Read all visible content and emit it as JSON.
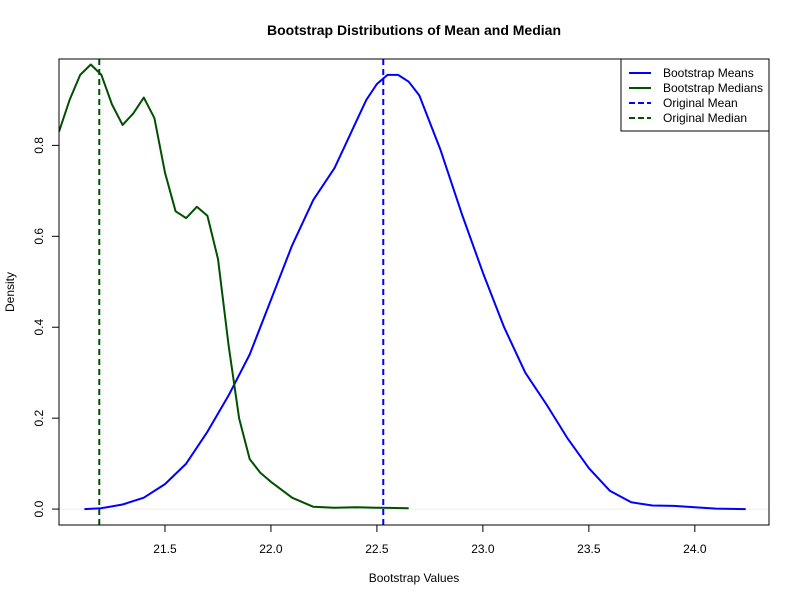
{
  "chart_data": {
    "type": "line",
    "title": "Bootstrap Distributions of Mean and Median",
    "xlabel": "Bootstrap Values",
    "ylabel": "Density",
    "xlim": [
      21.0,
      24.35
    ],
    "ylim": [
      -0.035,
      0.99
    ],
    "x_ticks": [
      {
        "value": 21.5,
        "label": "21.5"
      },
      {
        "value": 22.0,
        "label": "22.0"
      },
      {
        "value": 22.5,
        "label": "22.5"
      },
      {
        "value": 23.0,
        "label": "23.0"
      },
      {
        "value": 23.5,
        "label": "23.5"
      },
      {
        "value": 24.0,
        "label": "24.0"
      }
    ],
    "y_ticks": [
      {
        "value": 0.0,
        "label": "0.0"
      },
      {
        "value": 0.2,
        "label": "0.2"
      },
      {
        "value": 0.4,
        "label": "0.4"
      },
      {
        "value": 0.6,
        "label": "0.6"
      },
      {
        "value": 0.8,
        "label": "0.8"
      }
    ],
    "baseline": 0,
    "series": [
      {
        "name": "Bootstrap Means",
        "color": "#0000ff",
        "style": "solid",
        "points": [
          [
            21.12,
            0.0
          ],
          [
            21.2,
            0.002
          ],
          [
            21.3,
            0.01
          ],
          [
            21.4,
            0.025
          ],
          [
            21.5,
            0.055
          ],
          [
            21.6,
            0.1
          ],
          [
            21.7,
            0.17
          ],
          [
            21.8,
            0.25
          ],
          [
            21.9,
            0.34
          ],
          [
            22.0,
            0.46
          ],
          [
            22.1,
            0.58
          ],
          [
            22.2,
            0.68
          ],
          [
            22.3,
            0.75
          ],
          [
            22.35,
            0.8
          ],
          [
            22.4,
            0.85
          ],
          [
            22.45,
            0.9
          ],
          [
            22.5,
            0.935
          ],
          [
            22.55,
            0.955
          ],
          [
            22.6,
            0.955
          ],
          [
            22.65,
            0.94
          ],
          [
            22.7,
            0.91
          ],
          [
            22.8,
            0.79
          ],
          [
            22.9,
            0.65
          ],
          [
            23.0,
            0.52
          ],
          [
            23.1,
            0.4
          ],
          [
            23.2,
            0.3
          ],
          [
            23.3,
            0.23
          ],
          [
            23.4,
            0.155
          ],
          [
            23.5,
            0.09
          ],
          [
            23.6,
            0.04
          ],
          [
            23.7,
            0.015
          ],
          [
            23.8,
            0.008
          ],
          [
            23.9,
            0.007
          ],
          [
            24.0,
            0.004
          ],
          [
            24.1,
            0.001
          ],
          [
            24.24,
            0.0
          ]
        ]
      },
      {
        "name": "Bootstrap Medians",
        "color": "#005000",
        "style": "solid",
        "points": [
          [
            21.0,
            0.83
          ],
          [
            21.05,
            0.9
          ],
          [
            21.1,
            0.955
          ],
          [
            21.15,
            0.978
          ],
          [
            21.2,
            0.955
          ],
          [
            21.25,
            0.89
          ],
          [
            21.3,
            0.845
          ],
          [
            21.35,
            0.87
          ],
          [
            21.4,
            0.905
          ],
          [
            21.45,
            0.86
          ],
          [
            21.5,
            0.74
          ],
          [
            21.55,
            0.655
          ],
          [
            21.6,
            0.64
          ],
          [
            21.65,
            0.665
          ],
          [
            21.7,
            0.645
          ],
          [
            21.75,
            0.55
          ],
          [
            21.8,
            0.36
          ],
          [
            21.85,
            0.2
          ],
          [
            21.9,
            0.11
          ],
          [
            21.95,
            0.08
          ],
          [
            22.0,
            0.06
          ],
          [
            22.1,
            0.025
          ],
          [
            22.2,
            0.005
          ],
          [
            22.3,
            0.003
          ],
          [
            22.4,
            0.004
          ],
          [
            22.5,
            0.003
          ],
          [
            22.65,
            0.002
          ]
        ]
      },
      {
        "name": "Original Mean",
        "color": "#0000ff",
        "style": "dashed",
        "vline": 22.53
      },
      {
        "name": "Original Median",
        "color": "#005000",
        "style": "dashed",
        "vline": 21.19
      }
    ],
    "legend": {
      "placement": "top-right"
    },
    "grid": false
  }
}
